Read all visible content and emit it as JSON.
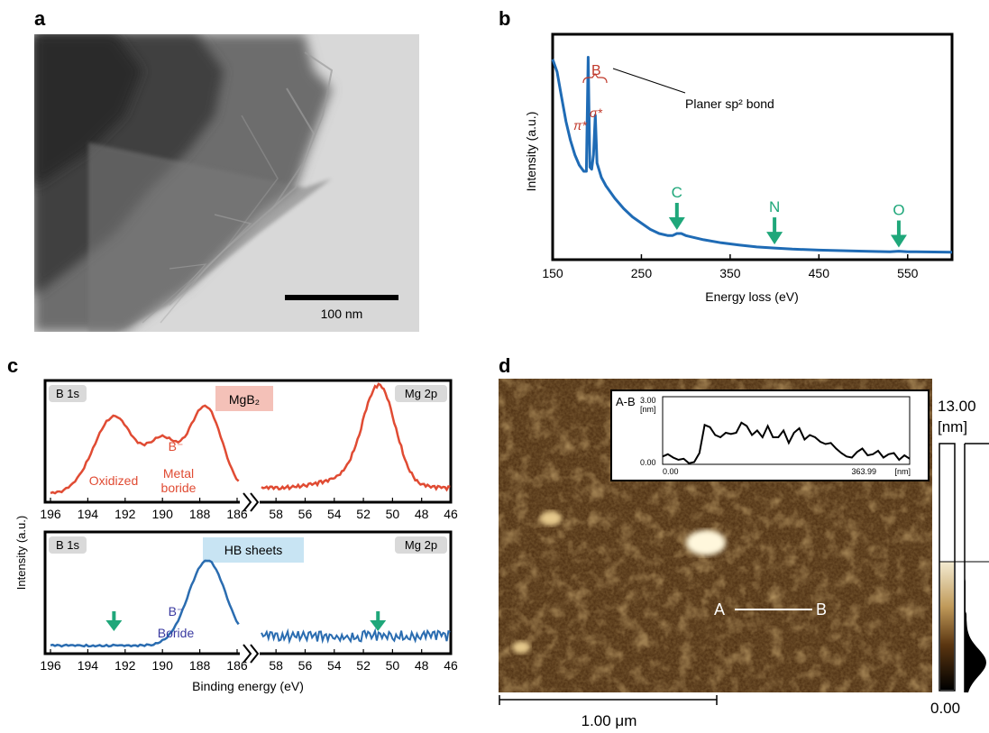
{
  "panels": {
    "a": "a",
    "b": "b",
    "c": "c",
    "d": "d"
  },
  "tem": {
    "scale_bar_label": "100 nm"
  },
  "eels": {
    "chart_data": {
      "type": "line",
      "xlabel": "Energy loss (eV)",
      "ylabel": "Intensity (a.u.)",
      "xlim": [
        150,
        600
      ],
      "xticks": [
        150,
        250,
        350,
        450,
        550
      ],
      "series_color": "#1f6bb5",
      "x": [
        150,
        155,
        160,
        165,
        170,
        175,
        180,
        185,
        188,
        190,
        192,
        194,
        196,
        198,
        200,
        205,
        210,
        220,
        230,
        240,
        250,
        260,
        270,
        280,
        285,
        290,
        295,
        300,
        320,
        340,
        360,
        380,
        400,
        420,
        450,
        500,
        530,
        540,
        550,
        600
      ],
      "y": [
        0.94,
        0.88,
        0.76,
        0.64,
        0.55,
        0.48,
        0.43,
        0.4,
        0.4,
        0.95,
        0.42,
        0.41,
        0.48,
        0.67,
        0.44,
        0.37,
        0.33,
        0.27,
        0.22,
        0.18,
        0.15,
        0.12,
        0.1,
        0.09,
        0.09,
        0.1,
        0.1,
        0.09,
        0.07,
        0.055,
        0.045,
        0.035,
        0.03,
        0.025,
        0.02,
        0.015,
        0.012,
        0.015,
        0.012,
        0.01
      ],
      "peak_labels": {
        "group": "B",
        "pi": "π*",
        "sigma": "σ*"
      },
      "annotation": "Planer sp² bond",
      "edges": [
        {
          "label": "C",
          "x": 290
        },
        {
          "label": "N",
          "x": 400
        },
        {
          "label": "O",
          "x": 540
        }
      ]
    }
  },
  "xps": {
    "ylabel": "Intensity (a.u.)",
    "xlabel": "Binding energy (eV)",
    "colors": {
      "top": "#e04b33",
      "bottom": "#2a6cb0",
      "arrow": "#1fa77a",
      "badge": "#d9d9d9",
      "mgb2_box": "#f4c1b8",
      "hb_box": "#c8e4f3"
    },
    "left_ticks": [
      "196",
      "194",
      "192",
      "190",
      "188",
      "186"
    ],
    "right_ticks": [
      "58",
      "56",
      "54",
      "52",
      "50",
      "48",
      "46"
    ],
    "top": {
      "left_badge": "B 1s",
      "right_badge": "Mg 2p",
      "title": "MgB₂",
      "bminus": "B⁻",
      "oxidized": "Oxidized",
      "metal": "Metal",
      "boride": "boride"
    },
    "bottom": {
      "left_badge": "B 1s",
      "right_badge": "Mg 2p",
      "title": "HB sheets",
      "bminus": "B⁻",
      "boride": "Boride"
    }
  },
  "afm": {
    "inset_title": "A-B",
    "inset_ymax": "3.00",
    "inset_yunit": "[nm]",
    "inset_ymin": "0.00",
    "inset_xmin": "0.00",
    "inset_xmax": "363.99",
    "inset_xunit": "[nm]",
    "line_a": "A",
    "line_b": "B",
    "colorbar_max": "13.00",
    "colorbar_unit": "[nm]",
    "colorbar_min": "0.00",
    "scale_bar_label": "1.00 μm",
    "profile_values": [
      0.35,
      0.45,
      0.3,
      0.2,
      0.25,
      0.05,
      0.1,
      0.5,
      1.75,
      1.65,
      1.3,
      1.2,
      1.4,
      1.35,
      1.4,
      1.85,
      1.7,
      1.3,
      1.5,
      1.2,
      1.7,
      1.2,
      1.2,
      1.5,
      0.95,
      1.4,
      1.6,
      1.1,
      1.3,
      1.2,
      1.0,
      0.9,
      0.95,
      0.7,
      0.5,
      0.35,
      0.3,
      0.55,
      0.7,
      0.4,
      0.45,
      0.6,
      0.3,
      0.45,
      0.5,
      0.2,
      0.4,
      0.25
    ]
  }
}
